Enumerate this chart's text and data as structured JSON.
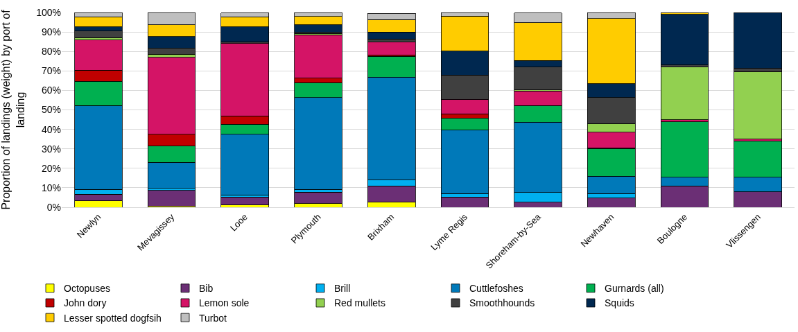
{
  "chart_data": {
    "type": "bar",
    "stacked": true,
    "ylabel": "Proportion of landings (weight) by port of\nlanding",
    "categories": [
      "Newlyn",
      "Mevagissey",
      "Looe",
      "Plymouth",
      "Brixham",
      "Lyme Regis",
      "Shoreham-by-Sea",
      "Newhaven",
      "Boulogne",
      "Vlissengen"
    ],
    "series": [
      {
        "name": "Octopuses",
        "color": "#ffff00",
        "values": [
          3.3,
          0.5,
          1.2,
          1.8,
          2.6,
          null,
          null,
          null,
          null,
          null
        ]
      },
      {
        "name": "Bib",
        "color": "#6b2f75",
        "values": [
          3.4,
          8.1,
          4.1,
          5.9,
          8.3,
          5.2,
          2.6,
          4.7,
          10.9,
          7.9
        ]
      },
      {
        "name": "Brill",
        "color": "#00b0f0",
        "values": [
          2.5,
          1.1,
          1.0,
          1.5,
          3.0,
          1.8,
          4.9,
          2.3,
          null,
          null
        ]
      },
      {
        "name": "Cuttlefoshes",
        "color": "#0079b9",
        "values": [
          43.1,
          13.4,
          31.2,
          47.2,
          52.9,
          32.6,
          36.1,
          9.0,
          4.5,
          7.5
        ]
      },
      {
        "name": "Gurnards (all)",
        "color": "#00b050",
        "values": [
          12.3,
          8.3,
          5.1,
          7.5,
          10.7,
          6.1,
          8.6,
          14.2,
          28.5,
          18.5
        ]
      },
      {
        "name": "John dory",
        "color": "#c00000",
        "values": [
          5.8,
          6.0,
          4.2,
          2.4,
          0.7,
          2.2,
          null,
          0.2,
          null,
          null
        ]
      },
      {
        "name": "Lemon sole",
        "color": "#d41466",
        "values": [
          15.4,
          39.5,
          37.3,
          22.2,
          6.6,
          7.5,
          7.5,
          8.1,
          1.1,
          1.1
        ]
      },
      {
        "name": "Red mullets",
        "color": "#92d050",
        "values": [
          1.3,
          1.7,
          null,
          0.8,
          null,
          null,
          0.6,
          4.4,
          27.0,
          34.6
        ]
      },
      {
        "name": "Smoothhounds",
        "color": "#404040",
        "values": [
          3.3,
          2.9,
          0.8,
          0.5,
          1.6,
          12.5,
          11.6,
          13.4,
          1.0,
          1.7
        ]
      },
      {
        "name": "Squids",
        "color": "#002850",
        "values": [
          2.2,
          6.1,
          7.8,
          3.8,
          3.5,
          12.3,
          3.4,
          7.1,
          26.0,
          28.7
        ]
      },
      {
        "name": "Lesser spotted dogfsih",
        "color": "#ffcc00",
        "values": [
          5.1,
          6.0,
          5.0,
          4.4,
          6.4,
          17.9,
          19.4,
          33.5,
          1.0,
          null
        ]
      },
      {
        "name": "Turbot",
        "color": "#bfbfbf",
        "values": [
          2.3,
          6.4,
          2.1,
          2.0,
          3.2,
          1.9,
          5.0,
          3.1,
          null,
          null
        ]
      }
    ],
    "ylim": [
      0,
      100
    ],
    "yticks": [
      {
        "value": 0,
        "label": "0%"
      },
      {
        "value": 10,
        "label": "10%"
      },
      {
        "value": 20,
        "label": "20%"
      },
      {
        "value": 30,
        "label": "30%"
      },
      {
        "value": 40,
        "label": "40%"
      },
      {
        "value": 50,
        "label": "50%"
      },
      {
        "value": 60,
        "label": "60%"
      },
      {
        "value": 70,
        "label": "70%"
      },
      {
        "value": 80,
        "label": "80%"
      },
      {
        "value": 90,
        "label": "90%"
      },
      {
        "value": 100,
        "label": "100%"
      }
    ],
    "grid": "y",
    "legend": "bottom"
  }
}
